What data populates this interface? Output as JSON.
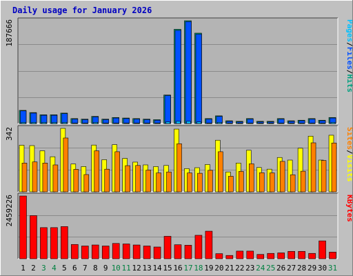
{
  "colors": {
    "background": "#c0c0c0",
    "panel": "#b4b4b4",
    "title": "#0000c0",
    "grid": "#8a8a8a",
    "pages": "#00c0ff",
    "files": "#0050ff",
    "hits": "#00a080",
    "visits": "#ffff00",
    "sites": "#ff8000",
    "kbytes": "#ff0000",
    "weekday": "#000000",
    "weekend": "#008040",
    "separator": "#000000"
  },
  "chart_data": {
    "type": "bar",
    "title": "Daily usage for January 2026",
    "categories": [
      "1",
      "2",
      "3",
      "4",
      "5",
      "6",
      "7",
      "8",
      "9",
      "10",
      "11",
      "12",
      "13",
      "14",
      "15",
      "16",
      "17",
      "18",
      "19",
      "20",
      "21",
      "22",
      "23",
      "24",
      "25",
      "26",
      "27",
      "28",
      "29",
      "30",
      "31"
    ],
    "weekend_days": [
      "3",
      "4",
      "10",
      "11",
      "17",
      "18",
      "24",
      "25",
      "31"
    ],
    "panels": [
      {
        "id": "hits-files-pages",
        "max_label": "187666",
        "max": 187666,
        "legend": [
          {
            "text": "Pages",
            "color_key": "pages"
          },
          {
            "text": "/",
            "color_key": "separator"
          },
          {
            "text": "Files",
            "color_key": "files"
          },
          {
            "text": "/",
            "color_key": "separator"
          },
          {
            "text": "Hits",
            "color_key": "hits"
          }
        ],
        "series": [
          {
            "name": "Hits",
            "color_key": "hits",
            "values": [
              24000,
              20000,
              16000,
              16000,
              19000,
              9000,
              8000,
              13000,
              8000,
              11000,
              10000,
              9000,
              8000,
              7000,
              52000,
              172000,
              187666,
              165000,
              9000,
              14000,
              5000,
              4000,
              9000,
              4000,
              4000,
              9000,
              5000,
              6000,
              9000,
              6000,
              11000
            ]
          },
          {
            "name": "Files",
            "color_key": "files",
            "values": [
              23000,
              19000,
              15000,
              15000,
              18000,
              8000,
              7000,
              12000,
              7000,
              10000,
              9000,
              8000,
              7000,
              6000,
              51000,
              170000,
              186000,
              163000,
              8000,
              13000,
              4000,
              3000,
              8000,
              3000,
              3000,
              8000,
              4000,
              5000,
              8000,
              5000,
              10000
            ]
          },
          {
            "name": "Pages",
            "color_key": "pages",
            "values": [
              2000,
              2000,
              2000,
              2000,
              2000,
              1000,
              1000,
              2000,
              1000,
              1000,
              1000,
              1000,
              1000,
              1000,
              3000,
              4000,
              4000,
              3000,
              1000,
              2000,
              1000,
              1000,
              1000,
              1000,
              1000,
              1000,
              1000,
              1000,
              1000,
              1000,
              2000
            ]
          }
        ]
      },
      {
        "id": "visits-sites",
        "max_label": "342",
        "max": 342,
        "legend": [
          {
            "text": "Sites",
            "color_key": "sites"
          },
          {
            "text": "/",
            "color_key": "separator"
          },
          {
            "text": "Visits",
            "color_key": "visits"
          }
        ],
        "series": [
          {
            "name": "Visits",
            "color_key": "visits",
            "values": [
              251,
              249,
              221,
              189,
              342,
              150,
              136,
              252,
              173,
              254,
              180,
              160,
              145,
              136,
              142,
              338,
              125,
              130,
              147,
              278,
              107,
              155,
              224,
              131,
              122,
              185,
              171,
              235,
              300,
              171,
              305
            ]
          },
          {
            "name": "Sites",
            "color_key": "sites",
            "values": [
              155,
              161,
              155,
              145,
              290,
              121,
              93,
              221,
              122,
              216,
              141,
              142,
              117,
              102,
              107,
              259,
              102,
              100,
              116,
              216,
              84,
              110,
              151,
              103,
              102,
              164,
              92,
              111,
              264,
              169,
              263
            ]
          }
        ]
      },
      {
        "id": "kbytes",
        "max_label": "2459226",
        "max": 2459226,
        "legend": [
          {
            "text": "KBytes",
            "color_key": "kbytes"
          }
        ],
        "series": [
          {
            "name": "KBytes",
            "color_key": "kbytes",
            "values": [
              2459226,
              1690000,
              1220000,
              1220000,
              1260000,
              560000,
              500000,
              540000,
              500000,
              600000,
              580000,
              540000,
              500000,
              460000,
              880000,
              550000,
              530000,
              920000,
              1080000,
              200000,
              130000,
              300000,
              300000,
              170000,
              210000,
              230000,
              290000,
              290000,
              210000,
              700000,
              260000
            ]
          }
        ]
      }
    ]
  }
}
